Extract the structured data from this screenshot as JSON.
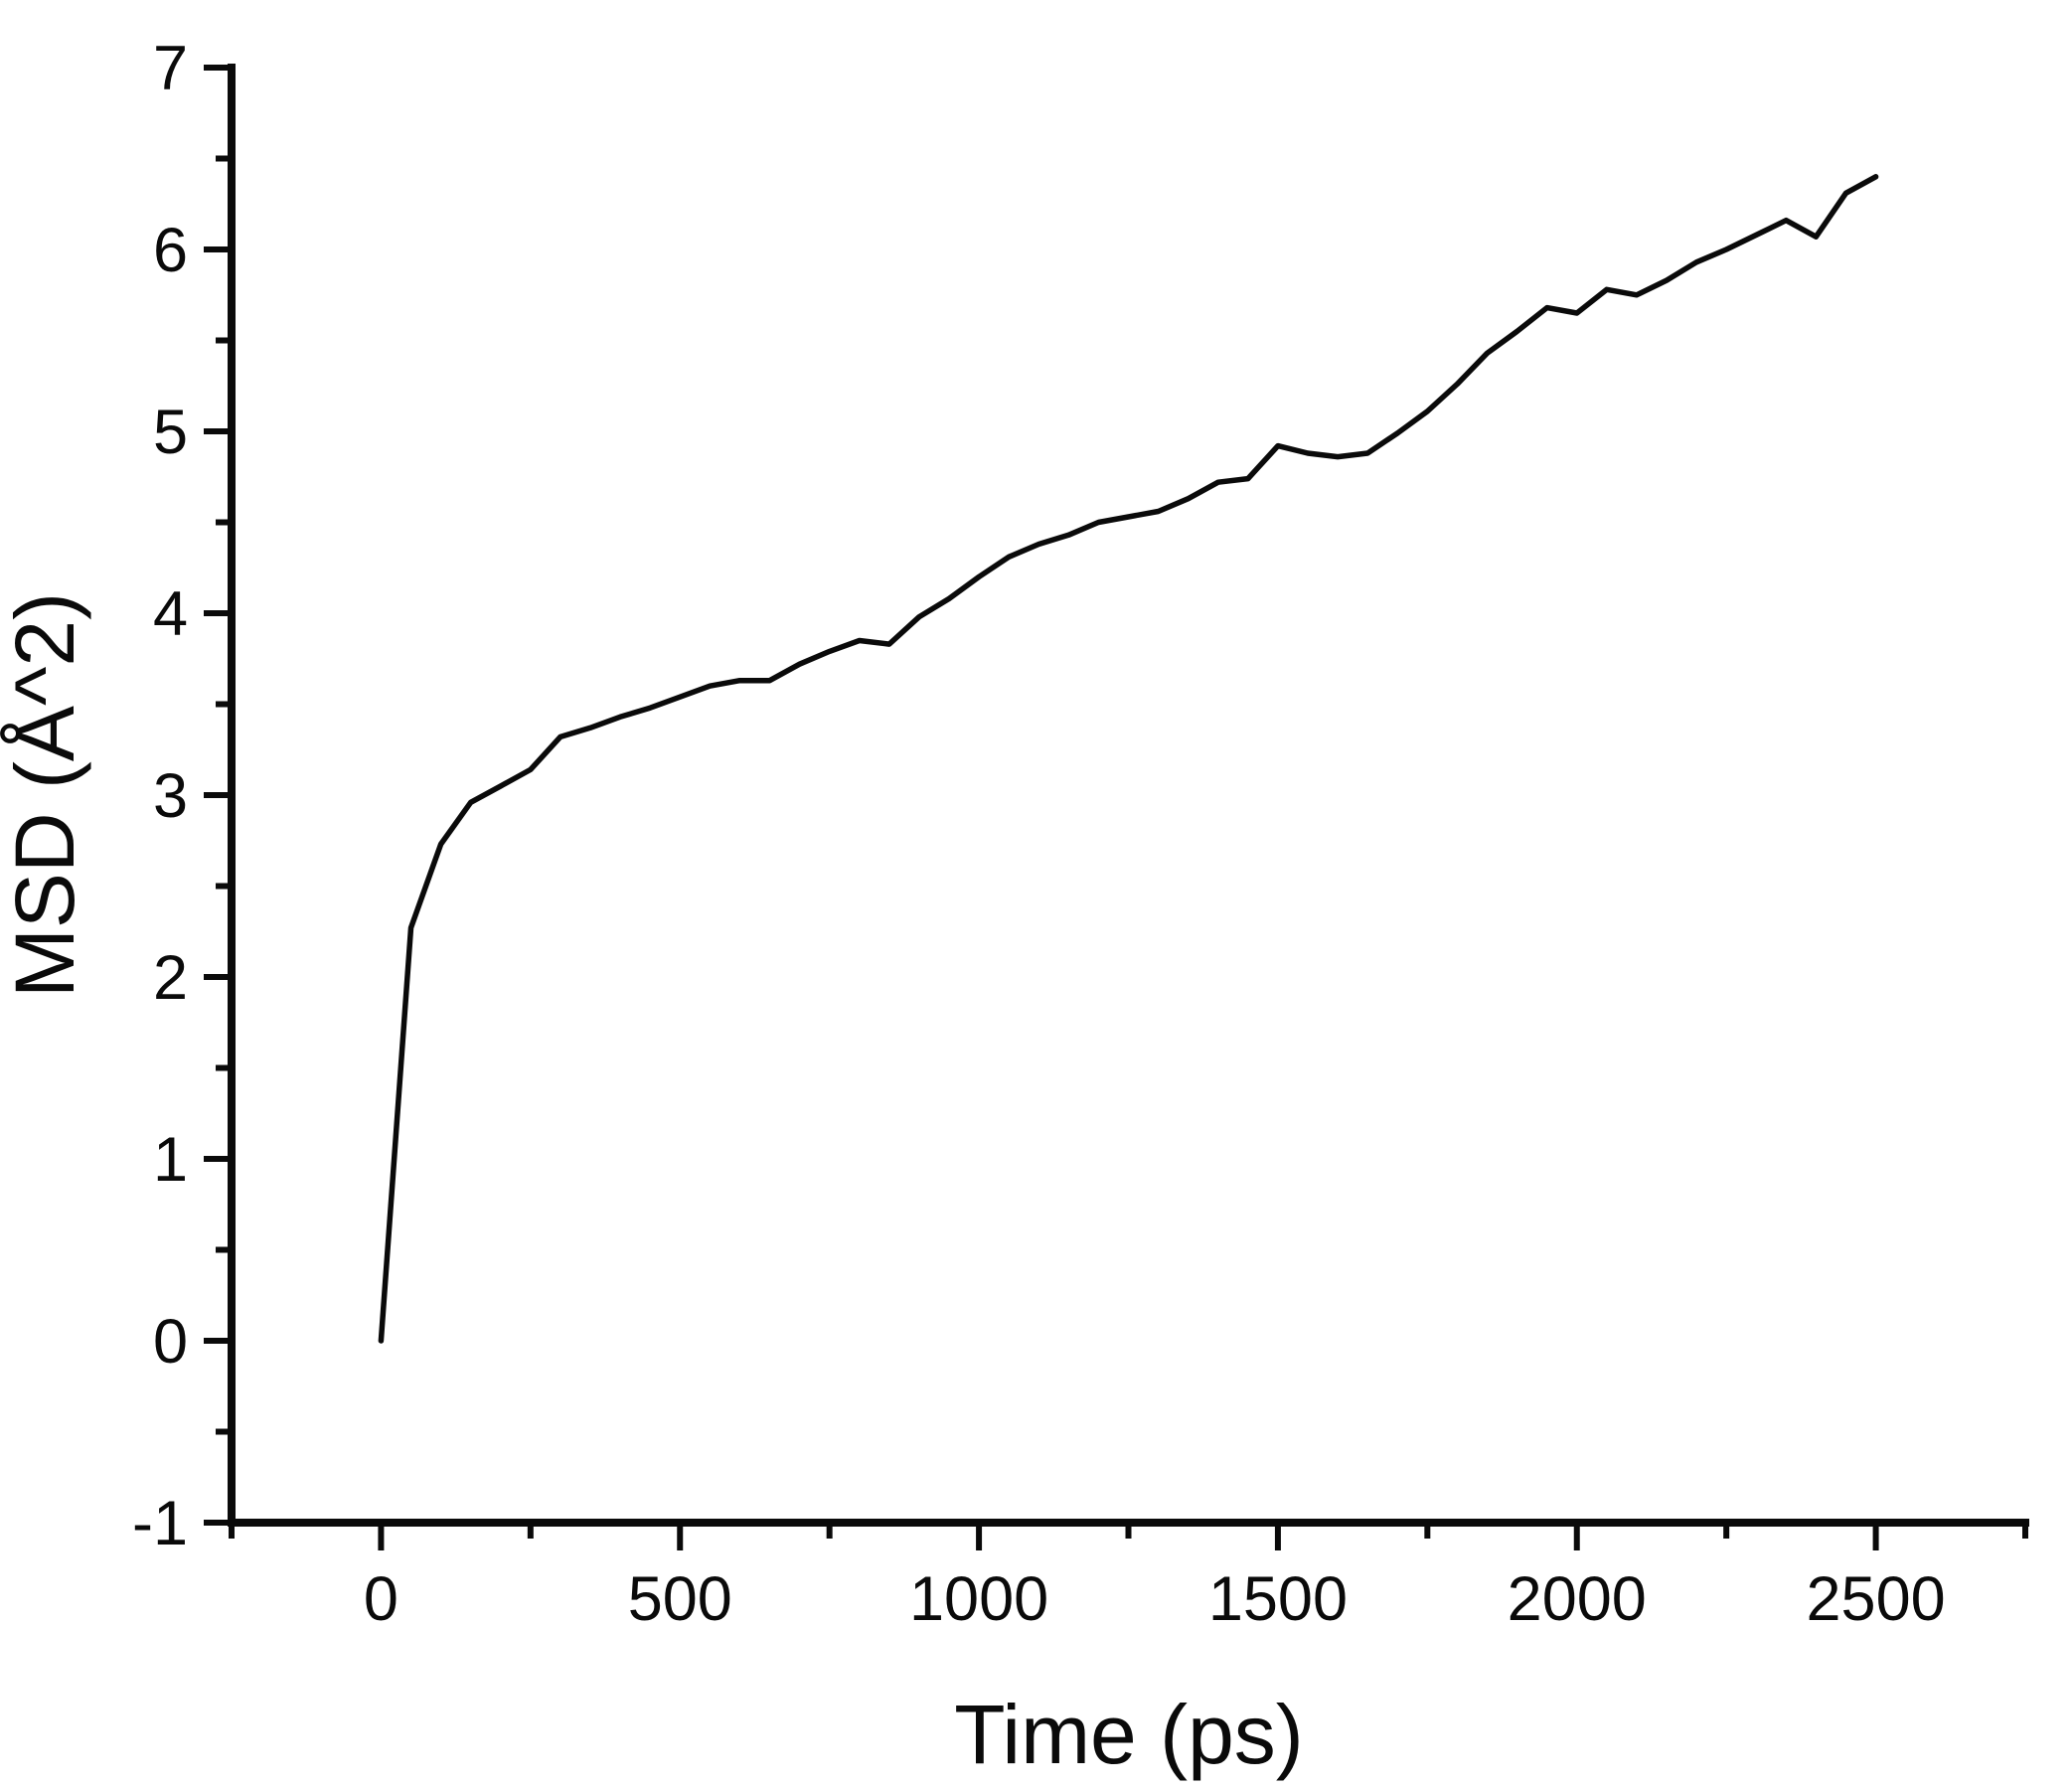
{
  "chart_data": {
    "type": "line",
    "title": "",
    "xlabel": "Time (ps)",
    "ylabel": "MSD (Å^2)",
    "xlim": [
      -250,
      2750
    ],
    "ylim": [
      -1,
      7
    ],
    "x_major_ticks": [
      0,
      500,
      1000,
      1500,
      2000,
      2500
    ],
    "x_minor_ticks": [
      -250,
      250,
      750,
      1250,
      1750,
      2250,
      2750
    ],
    "y_major_ticks": [
      -1,
      0,
      1,
      2,
      3,
      4,
      5,
      6,
      7
    ],
    "y_minor_ticks": [
      -0.5,
      0.5,
      1.5,
      2.5,
      3.5,
      4.5,
      5.5,
      6.5
    ],
    "grid": false,
    "legend": null,
    "line_color": "#0a0a0a",
    "axis_color": "#0a0a0a",
    "background": "#ffffff",
    "series": [
      {
        "name": "MSD",
        "points": [
          [
            0,
            0.0
          ],
          [
            50,
            2.27
          ],
          [
            100,
            2.73
          ],
          [
            150,
            2.96
          ],
          [
            200,
            3.05
          ],
          [
            250,
            3.14
          ],
          [
            300,
            3.32
          ],
          [
            350,
            3.37
          ],
          [
            400,
            3.43
          ],
          [
            450,
            3.48
          ],
          [
            500,
            3.54
          ],
          [
            550,
            3.6
          ],
          [
            600,
            3.63
          ],
          [
            650,
            3.63
          ],
          [
            700,
            3.72
          ],
          [
            750,
            3.79
          ],
          [
            800,
            3.85
          ],
          [
            850,
            3.83
          ],
          [
            900,
            3.98
          ],
          [
            950,
            4.08
          ],
          [
            1000,
            4.2
          ],
          [
            1050,
            4.31
          ],
          [
            1100,
            4.38
          ],
          [
            1150,
            4.43
          ],
          [
            1200,
            4.5
          ],
          [
            1250,
            4.53
          ],
          [
            1300,
            4.56
          ],
          [
            1350,
            4.63
          ],
          [
            1400,
            4.72
          ],
          [
            1450,
            4.74
          ],
          [
            1500,
            4.92
          ],
          [
            1550,
            4.88
          ],
          [
            1600,
            4.86
          ],
          [
            1650,
            4.88
          ],
          [
            1700,
            4.99
          ],
          [
            1750,
            5.11
          ],
          [
            1800,
            5.26
          ],
          [
            1850,
            5.43
          ],
          [
            1900,
            5.55
          ],
          [
            1950,
            5.68
          ],
          [
            2000,
            5.65
          ],
          [
            2050,
            5.78
          ],
          [
            2100,
            5.75
          ],
          [
            2150,
            5.83
          ],
          [
            2200,
            5.93
          ],
          [
            2250,
            6.0
          ],
          [
            2300,
            6.08
          ],
          [
            2350,
            6.16
          ],
          [
            2400,
            6.07
          ],
          [
            2450,
            6.31
          ],
          [
            2500,
            6.4
          ]
        ]
      }
    ]
  }
}
